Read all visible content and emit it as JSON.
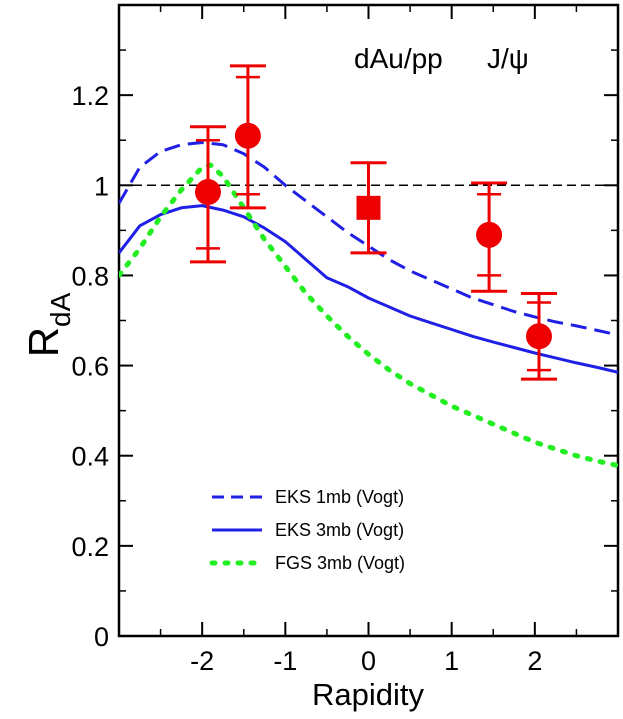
{
  "chart_data": {
    "type": "line",
    "title": "",
    "annotation": {
      "main": "dAu/pp",
      "particle": "J/ψ"
    },
    "xlabel": "Rapidity",
    "ylabel": {
      "main": "R",
      "sub": "dA"
    },
    "xlim": [
      -3,
      3
    ],
    "ylim": [
      0,
      1.4
    ],
    "xticks": [
      -2,
      -1,
      0,
      1,
      2
    ],
    "yticks": [
      0,
      0.2,
      0.4,
      0.6,
      0.8,
      1,
      1.2
    ],
    "xtick_labels": [
      "-2",
      "-1",
      "0",
      "1",
      "2"
    ],
    "ytick_labels": [
      "0",
      "0.2",
      "0.4",
      "0.6",
      "0.8",
      "1",
      "1.2"
    ],
    "reference_line": {
      "y": 1.0,
      "style": "dashed",
      "color": "#000000"
    },
    "series": [
      {
        "name": "EKS 1mb (Vogt)",
        "style": "dashed",
        "color": "#1f1fe6",
        "x": [
          -3,
          -2.75,
          -2.5,
          -2.25,
          -2,
          -1.75,
          -1.5,
          -1.25,
          -1,
          -0.75,
          -0.5,
          -0.25,
          0,
          0.25,
          0.5,
          0.75,
          1,
          1.25,
          1.5,
          1.75,
          2,
          2.25,
          2.5,
          2.75,
          3
        ],
        "y": [
          0.96,
          1.04,
          1.075,
          1.09,
          1.095,
          1.09,
          1.07,
          1.04,
          1.0,
          0.965,
          0.93,
          0.895,
          0.865,
          0.835,
          0.81,
          0.79,
          0.77,
          0.75,
          0.735,
          0.72,
          0.708,
          0.697,
          0.688,
          0.678,
          0.668
        ]
      },
      {
        "name": "EKS 3mb (Vogt)",
        "style": "solid",
        "color": "#1f1fe6",
        "x": [
          -3,
          -2.75,
          -2.5,
          -2.25,
          -2,
          -1.75,
          -1.5,
          -1.25,
          -1,
          -0.75,
          -0.5,
          -0.25,
          0,
          0.25,
          0.5,
          0.75,
          1,
          1.25,
          1.5,
          1.75,
          2,
          2.25,
          2.5,
          2.75,
          3
        ],
        "y": [
          0.85,
          0.91,
          0.935,
          0.95,
          0.955,
          0.945,
          0.93,
          0.905,
          0.875,
          0.835,
          0.795,
          0.775,
          0.75,
          0.73,
          0.71,
          0.695,
          0.68,
          0.665,
          0.652,
          0.64,
          0.628,
          0.617,
          0.606,
          0.596,
          0.585
        ]
      },
      {
        "name": "FGS 3mb (Vogt)",
        "style": "dotted",
        "color": "#22ee22",
        "x": [
          -3,
          -2.75,
          -2.5,
          -2.25,
          -2,
          -1.9,
          -1.75,
          -1.5,
          -1.25,
          -1,
          -0.75,
          -0.5,
          -0.25,
          0,
          0.25,
          0.5,
          0.75,
          1,
          1.25,
          1.5,
          1.75,
          2,
          2.25,
          2.5,
          2.75,
          3
        ],
        "y": [
          0.8,
          0.86,
          0.93,
          0.99,
          1.04,
          1.045,
          1.02,
          0.95,
          0.88,
          0.82,
          0.76,
          0.71,
          0.665,
          0.625,
          0.59,
          0.56,
          0.535,
          0.51,
          0.49,
          0.47,
          0.45,
          0.43,
          0.415,
          0.4,
          0.388,
          0.378
        ]
      }
    ],
    "data_points": [
      {
        "x": -1.93,
        "y": 0.985,
        "marker": "circle",
        "stat_lo": 0.86,
        "stat_hi": 1.1,
        "syst_lo": 0.83,
        "syst_hi": 1.13
      },
      {
        "x": -1.45,
        "y": 1.11,
        "marker": "circle",
        "stat_lo": 0.98,
        "stat_hi": 1.24,
        "syst_lo": 0.95,
        "syst_hi": 1.265
      },
      {
        "x": 0.0,
        "y": 0.95,
        "marker": "square",
        "stat_lo": 0.85,
        "stat_hi": 1.05,
        "syst_lo": 0.85,
        "syst_hi": 1.05
      },
      {
        "x": 1.45,
        "y": 0.89,
        "marker": "circle",
        "stat_lo": 0.8,
        "stat_hi": 0.98,
        "syst_lo": 0.765,
        "syst_hi": 1.005
      },
      {
        "x": 2.05,
        "y": 0.665,
        "marker": "circle",
        "stat_lo": 0.59,
        "stat_hi": 0.74,
        "syst_lo": 0.57,
        "syst_hi": 0.76
      }
    ],
    "data_color": "#ee0000",
    "legend_position": "bottom-center"
  }
}
